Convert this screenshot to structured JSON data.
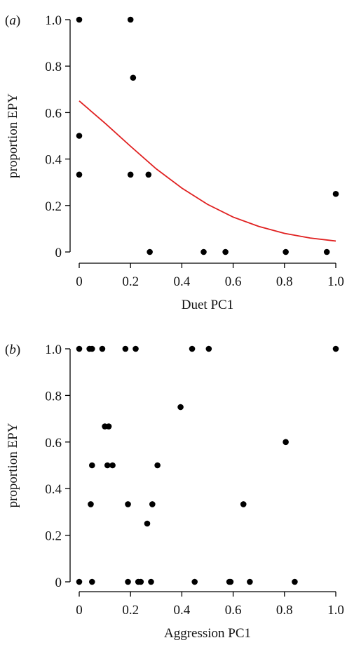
{
  "chart_data": [
    {
      "type": "scatter",
      "panel_label": "(a)",
      "xlabel": "Duet PC1",
      "ylabel": "proportion EPY",
      "xlim": [
        0,
        1.0
      ],
      "ylim": [
        0,
        1.0
      ],
      "xticks": [
        "0",
        "0.2",
        "0.4",
        "0.6",
        "0.8",
        "1.0"
      ],
      "yticks": [
        "0",
        "0.2",
        "0.4",
        "0.6",
        "0.8",
        "1.0"
      ],
      "grid": false,
      "series": [
        {
          "points": [
            [
              0.0,
              1.0
            ],
            [
              0.0,
              0.5
            ],
            [
              0.0,
              0.333
            ],
            [
              0.2,
              1.0
            ],
            [
              0.21,
              0.75
            ],
            [
              0.2,
              0.333
            ],
            [
              0.27,
              0.333
            ],
            [
              0.275,
              0.0
            ],
            [
              0.485,
              0.0
            ],
            [
              0.57,
              0.0
            ],
            [
              0.805,
              0.0
            ],
            [
              0.965,
              0.0
            ],
            [
              1.0,
              0.25
            ]
          ],
          "color": "#000000"
        }
      ],
      "fit_line": {
        "type": "logistic",
        "color": "#e02020",
        "x": [
          0.0,
          0.1,
          0.2,
          0.3,
          0.4,
          0.5,
          0.6,
          0.7,
          0.8,
          0.9,
          1.0
        ],
        "y": [
          0.65,
          0.555,
          0.455,
          0.358,
          0.275,
          0.205,
          0.15,
          0.11,
          0.08,
          0.06,
          0.047
        ]
      }
    },
    {
      "type": "scatter",
      "panel_label": "(b)",
      "xlabel": "Aggression PC1",
      "ylabel": "proportion EPY",
      "xlim": [
        0,
        1.0
      ],
      "ylim": [
        0,
        1.0
      ],
      "xticks": [
        "0",
        "0.2",
        "0.4",
        "0.6",
        "0.8",
        "1.0"
      ],
      "yticks": [
        "0",
        "0.2",
        "0.4",
        "0.6",
        "0.8",
        "1.0"
      ],
      "grid": false,
      "series": [
        {
          "points": [
            [
              0.0,
              1.0
            ],
            [
              0.04,
              1.0
            ],
            [
              0.05,
              1.0
            ],
            [
              0.09,
              1.0
            ],
            [
              0.18,
              1.0
            ],
            [
              0.22,
              1.0
            ],
            [
              0.44,
              1.0
            ],
            [
              0.505,
              1.0
            ],
            [
              1.0,
              1.0
            ],
            [
              0.395,
              0.75
            ],
            [
              0.1,
              0.667
            ],
            [
              0.115,
              0.667
            ],
            [
              0.805,
              0.6
            ],
            [
              0.05,
              0.5
            ],
            [
              0.11,
              0.5
            ],
            [
              0.13,
              0.5
            ],
            [
              0.305,
              0.5
            ],
            [
              0.045,
              0.333
            ],
            [
              0.19,
              0.333
            ],
            [
              0.285,
              0.333
            ],
            [
              0.64,
              0.333
            ],
            [
              0.265,
              0.25
            ],
            [
              0.0,
              0.0
            ],
            [
              0.05,
              0.0
            ],
            [
              0.19,
              0.0
            ],
            [
              0.23,
              0.0
            ],
            [
              0.24,
              0.0
            ],
            [
              0.28,
              0.0
            ],
            [
              0.45,
              0.0
            ],
            [
              0.585,
              0.0
            ],
            [
              0.59,
              0.0
            ],
            [
              0.665,
              0.0
            ],
            [
              0.84,
              0.0
            ]
          ],
          "color": "#000000"
        }
      ]
    }
  ]
}
